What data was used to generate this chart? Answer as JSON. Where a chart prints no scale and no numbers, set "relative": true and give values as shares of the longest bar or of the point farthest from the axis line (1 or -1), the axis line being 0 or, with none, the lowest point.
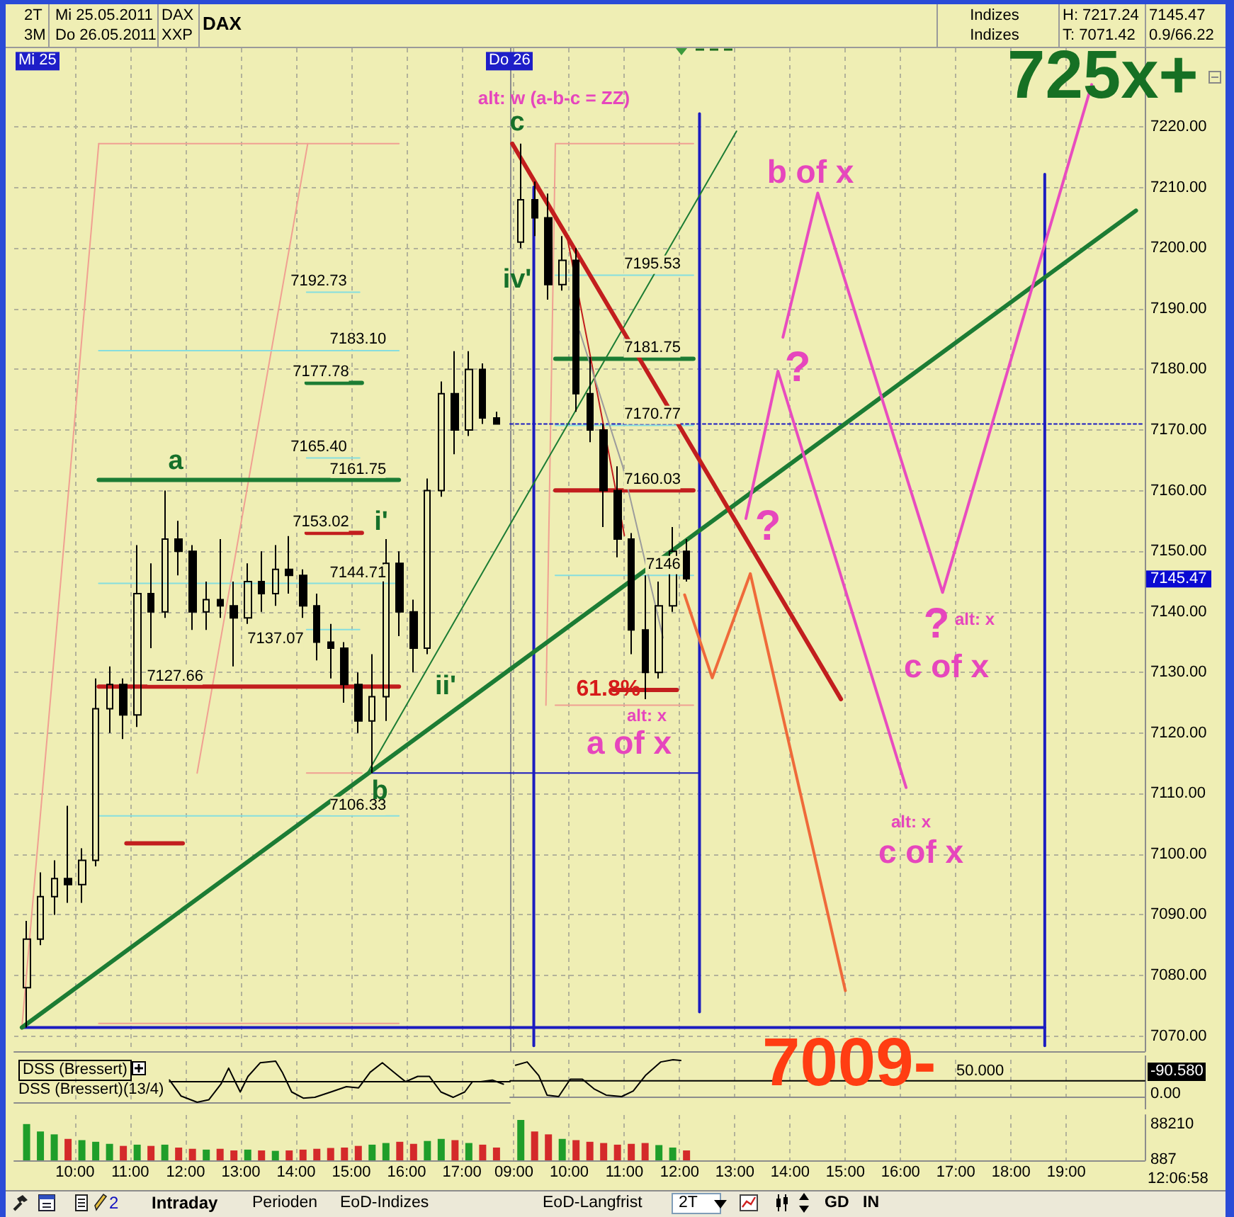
{
  "chart_data": [
    {
      "type": "candlestick",
      "title": "DAX",
      "x": [
        9.125,
        9.375,
        9.625,
        9.875,
        10.125,
        10.375,
        10.625,
        10.875,
        11.125,
        11.375,
        11.625,
        11.875,
        12.125,
        12.375,
        12.625,
        12.875,
        13.125,
        13.375,
        13.625,
        13.875,
        14.125,
        14.375,
        14.625,
        14.875,
        15.125,
        15.375,
        15.625,
        15.875,
        16.125,
        16.375,
        16.625,
        16.875,
        17.125,
        17.375,
        17.625
      ],
      "ohlc": [
        [
          7078,
          7089,
          7071.42,
          7086
        ],
        [
          7086,
          7097,
          7085,
          7093
        ],
        [
          7093,
          7099,
          7090,
          7096
        ],
        [
          7096,
          7108,
          7092,
          7095
        ],
        [
          7095,
          7101,
          7092,
          7099
        ],
        [
          7099,
          7129,
          7098,
          7124
        ],
        [
          7124,
          7131,
          7120,
          7128
        ],
        [
          7128,
          7129,
          7119,
          7123
        ],
        [
          7123,
          7151,
          7121,
          7143
        ],
        [
          7143,
          7148,
          7134,
          7140
        ],
        [
          7140,
          7160,
          7139,
          7152
        ],
        [
          7152,
          7155,
          7146,
          7150
        ],
        [
          7150,
          7151,
          7137,
          7140
        ],
        [
          7140,
          7145,
          7137,
          7142
        ],
        [
          7142,
          7152,
          7139,
          7141
        ],
        [
          7141,
          7145,
          7131,
          7139
        ],
        [
          7139,
          7148,
          7138,
          7145
        ],
        [
          7145,
          7150,
          7140,
          7143
        ],
        [
          7143,
          7151,
          7141,
          7147
        ],
        [
          7147,
          7152.5,
          7143,
          7146
        ],
        [
          7146,
          7147,
          7139,
          7141
        ],
        [
          7141,
          7143,
          7132,
          7135
        ],
        [
          7135,
          7138,
          7129,
          7134
        ],
        [
          7134,
          7135,
          7125,
          7128
        ],
        [
          7128,
          7130,
          7120,
          7122
        ],
        [
          7122,
          7133,
          7113.4,
          7126
        ],
        [
          7126,
          7152,
          7122,
          7148
        ],
        [
          7148,
          7150,
          7136,
          7140
        ],
        [
          7140,
          7142,
          7130,
          7134
        ],
        [
          7134,
          7162,
          7133,
          7160
        ],
        [
          7160,
          7178,
          7159,
          7176
        ],
        [
          7176,
          7183,
          7166,
          7170
        ],
        [
          7170,
          7183,
          7169,
          7180
        ],
        [
          7180,
          7181,
          7171,
          7172
        ],
        [
          7172,
          7173,
          7171,
          7171
        ]
      ],
      "xlim": [
        8.9,
        17.87
      ],
      "xticks": [
        {
          "value": 10,
          "label": null
        },
        {
          "value": 11,
          "label": null
        },
        {
          "value": 12,
          "label": null
        },
        {
          "value": 13,
          "label": null
        },
        {
          "value": 14,
          "label": null
        },
        {
          "value": 15,
          "label": null
        },
        {
          "value": 16,
          "label": null
        },
        {
          "value": 17,
          "label": null
        }
      ],
      "ylim": [
        7067.5,
        7233
      ],
      "yticks": [
        {
          "value": 7070,
          "label": null
        },
        {
          "value": 7080,
          "label": null
        },
        {
          "value": 7090,
          "label": null
        },
        {
          "value": 7100,
          "label": null
        },
        {
          "value": 7110,
          "label": null
        },
        {
          "value": 7120,
          "label": null
        },
        {
          "value": 7130,
          "label": null
        },
        {
          "value": 7140,
          "label": null
        },
        {
          "value": 7150,
          "label": null
        },
        {
          "value": 7160,
          "label": null
        },
        {
          "value": 7170,
          "label": null
        },
        {
          "value": 7180,
          "label": null
        },
        {
          "value": 7190,
          "label": null
        },
        {
          "value": 7200,
          "label": null
        },
        {
          "value": 7210,
          "label": null
        },
        {
          "value": 7220,
          "label": null
        }
      ],
      "grid": true,
      "tick_labels": false,
      "series": [
        {
          "type": "line",
          "color": "#f0a092",
          "x": [
            9.04,
            10.43
          ],
          "values": [
            7071.42,
            7217.24
          ]
        },
        {
          "type": "line",
          "color": "#f0a092",
          "x": [
            10.43,
            15.86
          ],
          "values": [
            7217.24,
            7217.24
          ]
        },
        {
          "type": "line",
          "color": "#f0a092",
          "x": [
            10.43,
            15.86
          ],
          "values": [
            7072.1,
            7072.1
          ]
        },
        {
          "type": "line",
          "color": "#f0a092",
          "x": [
            12.21,
            14.21
          ],
          "values": [
            7113.4,
            7217.24
          ]
        },
        {
          "type": "line",
          "color": "#86dede",
          "x": [
            14.19,
            15.15
          ],
          "values": [
            7192.73,
            7192.73
          ],
          "value_labels": [
            null,
            "7192.73"
          ]
        },
        {
          "type": "line",
          "color": "#86dede",
          "x": [
            10.43,
            15.86
          ],
          "values": [
            7183.1,
            7183.1
          ],
          "value_labels": [
            null,
            "7183.10"
          ]
        },
        {
          "type": "line",
          "color": "#1c7c34",
          "x": [
            14.19,
            15.19
          ],
          "values": [
            7177.78,
            7177.78
          ],
          "value_labels": [
            null,
            "7177.78"
          ]
        },
        {
          "type": "line",
          "color": "#86dede",
          "x": [
            14.19,
            15.15
          ],
          "values": [
            7165.4,
            7165.4
          ],
          "value_labels": [
            null,
            "7165.40"
          ]
        },
        {
          "type": "line",
          "color": "#1c7c34",
          "x": [
            10.43,
            15.86
          ],
          "values": [
            7161.75,
            7161.75
          ],
          "value_labels": [
            null,
            "7161.75"
          ]
        },
        {
          "type": "line",
          "color": "#c21e1e",
          "x": [
            14.19,
            15.19
          ],
          "values": [
            7153.02,
            7153.02
          ],
          "value_labels": [
            null,
            "7153.02"
          ]
        },
        {
          "type": "line",
          "color": "#86dede",
          "x": [
            10.43,
            15.86
          ],
          "values": [
            7144.71,
            7144.71
          ],
          "value_labels": [
            null,
            "7144.71"
          ]
        },
        {
          "type": "line",
          "color": "#86dede",
          "x": [
            14.19,
            15.15
          ],
          "values": [
            7137.07,
            7137.07
          ],
          "value_labels": [
            "7137.07",
            null
          ]
        },
        {
          "type": "line",
          "color": "#c21e1e",
          "x": [
            10.43,
            11.25,
            15.86
          ],
          "values": [
            7127.66,
            7127.66,
            7127.66
          ],
          "value_labels": [
            null,
            "7127.66",
            null
          ]
        },
        {
          "type": "line",
          "color": "#f0a092",
          "x": [
            14.19,
            15.19
          ],
          "values": [
            7113.4,
            7113.4
          ]
        },
        {
          "type": "line",
          "color": "#86dede",
          "x": [
            10.43,
            15.86
          ],
          "values": [
            7106.33,
            7106.33
          ],
          "value_labels": [
            null,
            "7106.33"
          ]
        },
        {
          "type": "line",
          "color": "#c21e1e",
          "x": [
            10.93,
            11.95
          ],
          "values": [
            7101.8,
            7101.8
          ]
        },
        {
          "type": "line",
          "color": "#1c1cc0",
          "x": [
            9.03,
            17.87
          ],
          "values": [
            7071.42,
            7071.42
          ]
        },
        {
          "type": "line",
          "color": "#1c1cc0",
          "x": [
            15.29,
            17.87
          ],
          "values": [
            7113.4,
            7113.4
          ]
        },
        {
          "type": "line",
          "color": "#1c7c34",
          "x": [
            9.04,
            17.87
          ],
          "values": [
            7071.42,
            7130.5
          ]
        },
        {
          "type": "line",
          "color": "#1c7c34",
          "x": [
            15.29,
            17.87
          ],
          "values": [
            7113.4,
            7154.4
          ]
        }
      ],
      "annotations": [
        "2T",
        "Mi 25.05.2011",
        "DAX",
        "3M",
        "Do 26.05.2011",
        "XXP",
        "Indizes",
        "Indizes",
        "H: 7217.24",
        "T: 7071.42",
        "7145.47",
        "0.9/66.22",
        "Mi 25",
        "a",
        "i'",
        "ii'",
        "b"
      ]
    },
    {
      "type": "candlestick",
      "x": [
        9.125,
        9.375,
        9.625,
        9.875,
        10.125,
        10.375,
        10.625,
        10.875,
        11.125,
        11.375,
        11.625,
        11.875,
        12.125
      ],
      "ohlc": [
        [
          7201,
          7217.24,
          7200,
          7208
        ],
        [
          7208,
          7211,
          7202,
          7205
        ],
        [
          7205,
          7209,
          7191.5,
          7194
        ],
        [
          7194,
          7202,
          7193,
          7198
        ],
        [
          7198,
          7200,
          7173,
          7176
        ],
        [
          7176,
          7182,
          7168,
          7170
        ],
        [
          7170,
          7171,
          7154,
          7160
        ],
        [
          7160,
          7164,
          7149,
          7152
        ],
        [
          7152,
          7153,
          7133,
          7137
        ],
        [
          7137,
          7146,
          7125.6,
          7130
        ],
        [
          7130,
          7145,
          7129,
          7141
        ],
        [
          7141,
          7154,
          7140,
          7150
        ],
        [
          7150,
          7152,
          7145,
          7145.47
        ]
      ],
      "xlim": [
        8.93,
        20.42
      ],
      "xticks": [
        {
          "value": 9,
          "label": null
        },
        {
          "value": 10,
          "label": null
        },
        {
          "value": 11,
          "label": null
        },
        {
          "value": 12,
          "label": null
        },
        {
          "value": 13,
          "label": null
        },
        {
          "value": 14,
          "label": null
        },
        {
          "value": 15,
          "label": null
        },
        {
          "value": 16,
          "label": null
        },
        {
          "value": 17,
          "label": null
        },
        {
          "value": 18,
          "label": null
        },
        {
          "value": 19,
          "label": null
        }
      ],
      "ylim": [
        7067.5,
        7233
      ],
      "yticks": [
        {
          "value": 7070,
          "label": "7070.00"
        },
        {
          "value": 7080,
          "label": "7080.00"
        },
        {
          "value": 7090,
          "label": "7090.00"
        },
        {
          "value": 7100,
          "label": "7100.00"
        },
        {
          "value": 7110,
          "label": "7110.00"
        },
        {
          "value": 7120,
          "label": "7120.00"
        },
        {
          "value": 7130,
          "label": "7130.00"
        },
        {
          "value": 7140,
          "label": "7140.00"
        },
        {
          "value": 7150,
          "label": "7150.00"
        },
        {
          "value": 7160,
          "label": "7160.00"
        },
        {
          "value": 7170,
          "label": "7170.00"
        },
        {
          "value": 7180,
          "label": "7180.00"
        },
        {
          "value": 7190,
          "label": "7190.00"
        },
        {
          "value": 7200,
          "label": "7200.00"
        },
        {
          "value": 7210,
          "label": "7210.00"
        },
        {
          "value": 7220,
          "label": "7220.00"
        }
      ],
      "grid": true,
      "tick_labels": "y",
      "series": [
        {
          "type": "line",
          "color": "#f0a092",
          "x": [
            9.75,
            12.25
          ],
          "values": [
            7217.24,
            7217.24
          ]
        },
        {
          "type": "line",
          "color": "#f0a092",
          "x": [
            9.75,
            9.58
          ],
          "values": [
            7217.24,
            7124.6
          ]
        },
        {
          "type": "line",
          "color": "#86dede",
          "x": [
            9.75,
            12.25
          ],
          "values": [
            7195.53,
            7195.53
          ],
          "value_labels": [
            null,
            "7195.53"
          ]
        },
        {
          "type": "line",
          "color": "#1c7c34",
          "x": [
            9.75,
            12.25
          ],
          "values": [
            7181.75,
            7181.75
          ],
          "value_labels": [
            null,
            "7181.75"
          ]
        },
        {
          "type": "line",
          "color": "#86dede",
          "x": [
            9.75,
            12.25
          ],
          "values": [
            7170.77,
            7170.77
          ],
          "value_labels": [
            null,
            "7170.77"
          ]
        },
        {
          "type": "line",
          "color": "#c21e1e",
          "x": [
            9.75,
            12.25
          ],
          "values": [
            7160.03,
            7160.03
          ],
          "value_labels": [
            null,
            "7160.03"
          ]
        },
        {
          "type": "line",
          "color": "#86dede",
          "x": [
            9.75,
            12.25
          ],
          "values": [
            7146,
            7146
          ],
          "value_labels": [
            null,
            "7146"
          ]
        },
        {
          "type": "line",
          "color": "#c21e1e",
          "x": [
            10.8,
            11.95
          ],
          "values": [
            7127.1,
            7127.1
          ]
        },
        {
          "type": "line",
          "color": "#f0a092",
          "x": [
            9.75,
            12.25
          ],
          "values": [
            7124.6,
            7124.6
          ]
        },
        {
          "type": "line",
          "color": "#1c1cc0",
          "x": [
            8.93,
            18.61
          ],
          "values": [
            7071.42,
            7071.42
          ]
        },
        {
          "type": "line",
          "color": "#1c1cc0",
          "x": [
            8.93,
            12.36
          ],
          "values": [
            7113.4,
            7113.4
          ]
        },
        {
          "type": "line",
          "color": "#1c1cc0",
          "x": [
            9.36,
            9.36
          ],
          "values": [
            7210.1,
            7068.4
          ]
        },
        {
          "type": "line",
          "color": "#1c1cc0",
          "x": [
            12.36,
            12.36
          ],
          "values": [
            7222.2,
            7074
          ]
        },
        {
          "type": "line",
          "color": "#1c1cc0",
          "x": [
            18.61,
            18.61
          ],
          "values": [
            7212.2,
            7068.4
          ]
        },
        {
          "type": "line",
          "color": "#1c1cc0",
          "line_style": "dotted",
          "x": [
            8.93,
            20.4
          ],
          "values": [
            7171,
            7171
          ]
        },
        {
          "type": "line",
          "color": "#1c7c34",
          "x": [
            8.93,
            20.26
          ],
          "values": [
            7130.5,
            7206.2
          ]
        },
        {
          "type": "line",
          "color": "#1c7c34",
          "x": [
            8.93,
            13.03
          ],
          "values": [
            7154.4,
            7219.3
          ]
        },
        {
          "type": "line",
          "color": "#c21e1e",
          "x": [
            8.97,
            14.92
          ],
          "values": [
            7217.24,
            7125.6
          ]
        },
        {
          "type": "line",
          "color": "#c21e1e",
          "x": [
            9.36,
            9.97,
            10.36,
            11
          ],
          "values": [
            7210.6,
            7201.5,
            7183.3,
            7152.6
          ]
        },
        {
          "type": "line",
          "color": "#9c9c9c",
          "x": [
            10.19,
            10.97,
            11.7
          ],
          "values": [
            7186.3,
            7164,
            7135.7
          ]
        },
        {
          "type": "line",
          "color": "#e84cbf",
          "x": [
            13.87,
            14.5,
            16.76,
            19.46
          ],
          "values": [
            7185.3,
            7209.1,
            7143.2,
            7227
          ]
        },
        {
          "type": "line",
          "color": "#e84cbf",
          "x": [
            13.2,
            13.78,
            16.1
          ],
          "values": [
            7155.4,
            7179.7,
            7111
          ]
        },
        {
          "type": "line",
          "color": "#ef6a3a",
          "x": [
            12.09,
            12.59,
            13.28,
            15
          ],
          "values": [
            7142.8,
            7129.1,
            7146.3,
            7077.5
          ]
        }
      ],
      "annotations": [
        "Do 26",
        "alt: w (a-b-c = ZZ)",
        "c",
        "iv'",
        {
          "text": "61.8%",
          "x": 10.71,
          "y": 7127.1
        },
        "alt: x",
        "a of x",
        "b of x",
        "?",
        "?",
        "?",
        "alt: x",
        "c of x",
        "alt: x",
        "c of x",
        "725x+",
        "7009-",
        "7145.47"
      ]
    },
    {
      "type": "line",
      "title": "DSS (Bressert)",
      "relative": true,
      "xlim": [
        8.9,
        17.87
      ],
      "xticks": [
        {
          "value": 10,
          "label": null
        },
        {
          "value": 11,
          "label": null
        },
        {
          "value": 12,
          "label": null
        },
        {
          "value": 13,
          "label": null
        },
        {
          "value": 14,
          "label": null
        },
        {
          "value": 15,
          "label": null
        },
        {
          "value": 16,
          "label": null
        },
        {
          "value": 17,
          "label": null
        }
      ],
      "tick_labels": false,
      "grid": "x",
      "series": [
        {
          "name": "DSS (Bressert)(13/4)",
          "color": "#000000",
          "x": [
            11.71,
            11.92,
            12.21,
            12.42,
            12.64,
            12.78,
            12.92,
            12.99,
            13.13,
            13.35,
            13.63,
            13.75,
            13.92,
            14.13,
            14.34,
            14.63,
            14.91,
            15.13,
            15.34,
            15.56,
            15.77,
            15.98,
            16.2,
            16.41,
            16.62,
            16.84,
            17.05,
            17.19,
            17.34,
            17.55,
            17.75
          ],
          "values": [
            0.54,
            0.15,
            0,
            0.06,
            0.44,
            0.83,
            0.44,
            0.25,
            0.63,
            0.96,
            1,
            0.73,
            0.25,
            0.1,
            0.12,
            0.25,
            0.38,
            0.35,
            0.73,
            0.96,
            0.73,
            0.5,
            0.63,
            0.63,
            0.25,
            0.12,
            0.25,
            0.5,
            0.5,
            0.54,
            0.44
          ]
        },
        {
          "type": "line",
          "color": "#000000",
          "x": [
            11.71,
            17.87
          ],
          "values": [
            0.5,
            0.5
          ]
        }
      ]
    },
    {
      "type": "line",
      "relative": true,
      "xlim": [
        8.93,
        20.42
      ],
      "xticks": [
        {
          "value": 9,
          "label": null
        },
        {
          "value": 10,
          "label": null
        },
        {
          "value": 11,
          "label": null
        },
        {
          "value": 12,
          "label": null
        },
        {
          "value": 13,
          "label": null
        },
        {
          "value": 14,
          "label": null
        },
        {
          "value": 15,
          "label": null
        },
        {
          "value": 16,
          "label": null
        },
        {
          "value": 17,
          "label": null
        },
        {
          "value": 18,
          "label": null
        },
        {
          "value": 19,
          "label": null
        }
      ],
      "tick_labels": false,
      "grid": "x",
      "series": [
        {
          "color": "#000000",
          "x": [
            9.03,
            9.24,
            9.45,
            9.6,
            9.81,
            10.02,
            10.24,
            10.45,
            10.67,
            10.95,
            11.16,
            11.38,
            11.66,
            11.88,
            12.02
          ],
          "values": [
            0.85,
            0.94,
            0.57,
            0.04,
            0,
            0.47,
            0.47,
            0.21,
            0.04,
            0,
            0.15,
            0.57,
            0.94,
            1,
            0.98
          ]
        },
        {
          "type": "line",
          "color": "#000000",
          "x": [
            8.93,
            20.42
          ],
          "values": [
            0.43,
            0.43
          ]
        }
      ],
      "annotations": [
        "50.000",
        "-90.580",
        "0.00"
      ]
    },
    {
      "type": "bar",
      "x": [
        9.125,
        9.375,
        9.625,
        9.875,
        10.125,
        10.375,
        10.625,
        10.875,
        11.125,
        11.375,
        11.625,
        11.875,
        12.125,
        12.375,
        12.625,
        12.875,
        13.125,
        13.375,
        13.625,
        13.875,
        14.125,
        14.375,
        14.625,
        14.875,
        15.125,
        15.375,
        15.625,
        15.875,
        16.125,
        16.375,
        16.625,
        16.875,
        17.125,
        17.375,
        17.625
      ],
      "values": [
        88000,
        70000,
        63000,
        52000,
        49000,
        45000,
        40000,
        35000,
        38000,
        35000,
        38000,
        31000,
        28000,
        26000,
        28000,
        24000,
        26000,
        24000,
        23000,
        24000,
        26000,
        28000,
        30000,
        31000,
        35000,
        38000,
        42000,
        45000,
        40000,
        47000,
        52000,
        49000,
        42000,
        38000,
        31000
      ],
      "colors": [
        "#1f9e2a",
        "#1f9e2a",
        "#1f9e2a",
        "#d42a2a",
        "#1f9e2a",
        "#1f9e2a",
        "#1f9e2a",
        "#d42a2a",
        "#1f9e2a",
        "#d42a2a",
        "#1f9e2a",
        "#d42a2a",
        "#d42a2a",
        "#1f9e2a",
        "#d42a2a",
        "#d42a2a",
        "#1f9e2a",
        "#d42a2a",
        "#1f9e2a",
        "#d42a2a",
        "#d42a2a",
        "#d42a2a",
        "#d42a2a",
        "#d42a2a",
        "#d42a2a",
        "#1f9e2a",
        "#1f9e2a",
        "#d42a2a",
        "#d42a2a",
        "#1f9e2a",
        "#1f9e2a",
        "#d42a2a",
        "#1f9e2a",
        "#d42a2a",
        "#d42a2a"
      ],
      "xlim": [
        8.9,
        17.87
      ],
      "xticks": [
        {
          "value": 10,
          "label": "10:00"
        },
        {
          "value": 11,
          "label": "11:00"
        },
        {
          "value": 12,
          "label": "12:00"
        },
        {
          "value": 13,
          "label": "13:00"
        },
        {
          "value": 14,
          "label": "14:00"
        },
        {
          "value": 15,
          "label": "15:00"
        },
        {
          "value": 16,
          "label": "16:00"
        },
        {
          "value": 17,
          "label": "17:00"
        }
      ],
      "ylim": [
        0,
        110000
      ],
      "yticks": [
        {
          "value": 887,
          "label": null
        },
        {
          "value": 88210,
          "label": null
        }
      ],
      "grid": "x",
      "tick_labels": "x",
      "annotations": [
        "2",
        "Intraday",
        "Perioden",
        "EoD-Indizes",
        "EoD-Langfrist"
      ]
    },
    {
      "type": "bar",
      "x": [
        9.125,
        9.375,
        9.625,
        9.875,
        10.125,
        10.375,
        10.625,
        10.875,
        11.125,
        11.375,
        11.625,
        11.875,
        12.125
      ],
      "values": [
        98000,
        70000,
        63000,
        52000,
        49000,
        45000,
        42000,
        38000,
        40000,
        42000,
        37000,
        31000,
        24000
      ],
      "colors": [
        "#1f9e2a",
        "#d42a2a",
        "#d42a2a",
        "#1f9e2a",
        "#d42a2a",
        "#d42a2a",
        "#d42a2a",
        "#d42a2a",
        "#d42a2a",
        "#d42a2a",
        "#1f9e2a",
        "#1f9e2a",
        "#d42a2a"
      ],
      "xlim": [
        8.93,
        20.42
      ],
      "xticks": [
        {
          "value": 9,
          "label": "09:00"
        },
        {
          "value": 10,
          "label": "10:00"
        },
        {
          "value": 11,
          "label": "11:00"
        },
        {
          "value": 12,
          "label": "12:00"
        },
        {
          "value": 13,
          "label": "13:00"
        },
        {
          "value": 14,
          "label": "14:00"
        },
        {
          "value": 15,
          "label": "15:00"
        },
        {
          "value": 16,
          "label": "16:00"
        },
        {
          "value": 17,
          "label": "17:00"
        },
        {
          "value": 18,
          "label": "18:00"
        },
        {
          "value": 19,
          "label": "19:00"
        }
      ],
      "ylim": [
        0,
        110000
      ],
      "yticks": [
        887,
        88210
      ],
      "grid": "x",
      "annotations": [
        "2T",
        "GD",
        "IN",
        "12:06:58"
      ]
    }
  ]
}
